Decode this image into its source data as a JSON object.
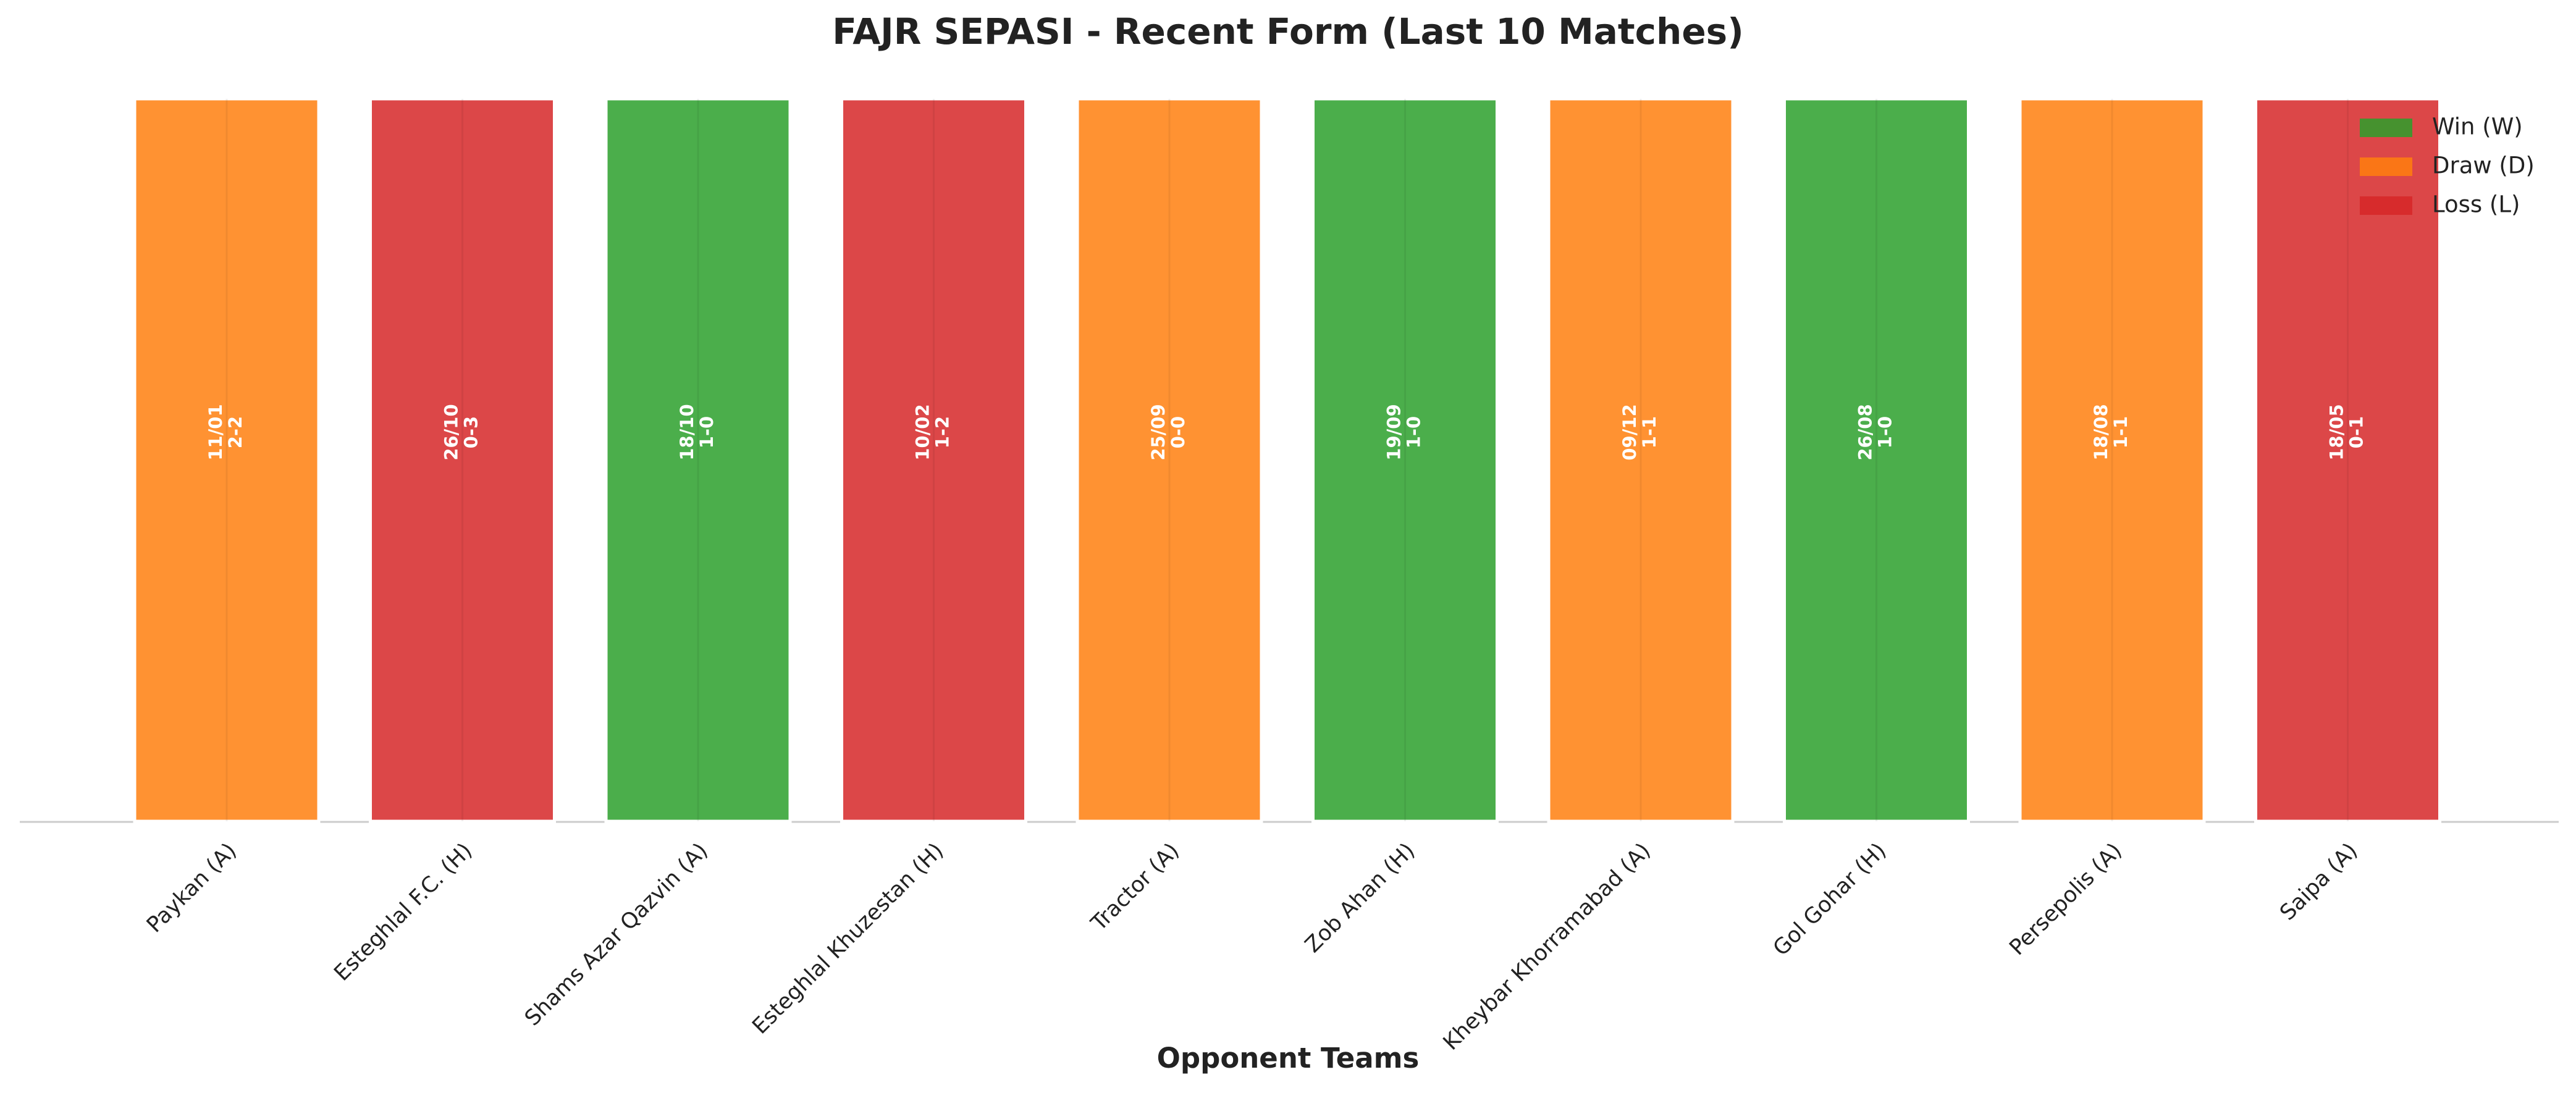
{
  "chart_data": {
    "type": "bar",
    "title": "FAJR SEPASI - Recent Form (Last 10 Matches)",
    "x_label": "Opponent Teams",
    "categories": [
      "Paykan (A)",
      "Esteghlal F.C. (H)",
      "Shams Azar Qazvin (A)",
      "Esteghlal Khuzestan (H)",
      "Tractor (A)",
      "Zob Ahan (H)",
      "Kheybar Khorramabad (A)",
      "Gol Gohar (H)",
      "Persepolis (A)",
      "Saipa (A)"
    ],
    "values": [
      1,
      1,
      1,
      1,
      1,
      1,
      1,
      1,
      1,
      1
    ],
    "ylim": [
      0,
      1
    ],
    "dates": [
      "11/01",
      "26/10",
      "18/10",
      "10/02",
      "25/09",
      "19/09",
      "09/12",
      "26/08",
      "18/08",
      "18/05"
    ],
    "scores": [
      "2-2",
      "0-3",
      "1-0",
      "1-2",
      "0-0",
      "1-0",
      "1-1",
      "1-0",
      "1-1",
      "0-1"
    ],
    "colors": [
      "#ff7f0e",
      "#d62728",
      "#2ca02c",
      "#d62728",
      "#ff7f0e",
      "#2ca02c",
      "#ff7f0e",
      "#2ca02c",
      "#ff7f0e",
      "#d62728"
    ],
    "legend": [
      {
        "name": "Win (W)",
        "color": "#2ca02c"
      },
      {
        "name": "Draw (D)",
        "color": "#ff7f0e"
      },
      {
        "name": "Loss (L)",
        "color": "#d62728"
      }
    ],
    "legend_position": "upper right"
  }
}
